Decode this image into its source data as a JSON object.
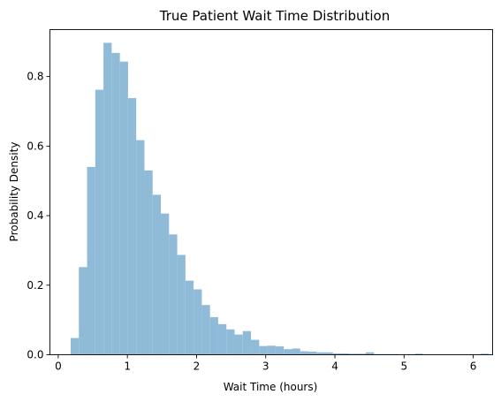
{
  "chart_data": {
    "type": "bar",
    "title": "True Patient Wait Time Distribution",
    "xlabel": "Wait Time (hours)",
    "ylabel": "Probability Density",
    "xlim": [
      -0.12,
      6.28
    ],
    "ylim": [
      0,
      0.935
    ],
    "xticks": [
      0,
      1,
      2,
      3,
      4,
      5,
      6
    ],
    "yticks": [
      0.0,
      0.2,
      0.4,
      0.6,
      0.8
    ],
    "ytick_labels": [
      "0.0",
      "0.2",
      "0.4",
      "0.6",
      "0.8"
    ],
    "grid": false,
    "bar_color": "#8fbbd9",
    "bins": {
      "start": 0.18,
      "width": 0.1185,
      "density": [
        0.048,
        0.252,
        0.54,
        0.762,
        0.897,
        0.868,
        0.843,
        0.738,
        0.617,
        0.53,
        0.46,
        0.406,
        0.346,
        0.287,
        0.213,
        0.188,
        0.143,
        0.108,
        0.088,
        0.073,
        0.058,
        0.068,
        0.043,
        0.025,
        0.026,
        0.024,
        0.016,
        0.018,
        0.01,
        0.009,
        0.007,
        0.007,
        0.004,
        0.004,
        0.003,
        0.003,
        0.007,
        0.002,
        0.002,
        0.002,
        0.001,
        0.001,
        0.003,
        0.001,
        0.001,
        0.001,
        0.001,
        0.001,
        0.001,
        0.001,
        0.003
      ]
    }
  }
}
